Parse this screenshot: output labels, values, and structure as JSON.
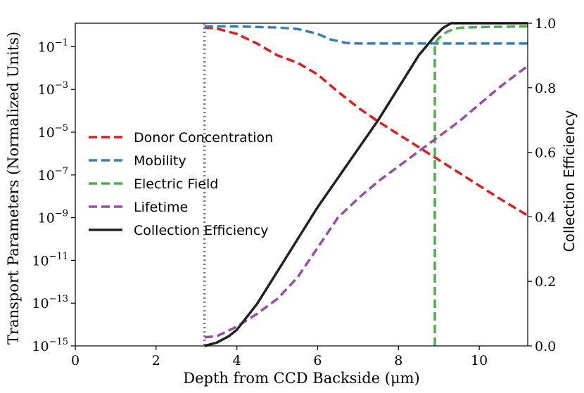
{
  "chart_data": {
    "type": "line",
    "xlabel": "Depth from CCD Backside (μm)",
    "ylabel_left": "Transport Parameters (Normalized Units)",
    "ylabel_right": "Collection Efficiency",
    "xlim": [
      0,
      11.2
    ],
    "ylim_left_log10": [
      -15,
      0.1
    ],
    "ylim_right": [
      0,
      1.0
    ],
    "x_ticks": [
      0,
      2,
      4,
      6,
      8,
      10
    ],
    "x_tick_labels": [
      "0",
      "2",
      "4",
      "6",
      "8",
      "10"
    ],
    "y_left_ticks": [
      {
        "exp": -1,
        "base": "10",
        "sup": "−1"
      },
      {
        "exp": -3,
        "base": "10",
        "sup": "−3"
      },
      {
        "exp": -5,
        "base": "10",
        "sup": "−5"
      },
      {
        "exp": -7,
        "base": "10",
        "sup": "−7"
      },
      {
        "exp": -9,
        "base": "10",
        "sup": "−9"
      },
      {
        "exp": -11,
        "base": "10",
        "sup": "−11"
      },
      {
        "exp": -13,
        "base": "10",
        "sup": "−13"
      },
      {
        "exp": -15,
        "base": "10",
        "sup": "−15"
      }
    ],
    "y_right_ticks": [
      0.0,
      0.2,
      0.4,
      0.6,
      0.8,
      1.0
    ],
    "y_right_tick_labels": [
      "0.0",
      "0.2",
      "0.4",
      "0.6",
      "0.8",
      "1.0"
    ],
    "reference_line": {
      "x": 3.2,
      "color": "#808080",
      "style": "dotted"
    },
    "legend_position": "center-left",
    "series": [
      {
        "name": "Donor Concentration",
        "axis": "left",
        "style": "dashed",
        "color": "#e41a1c",
        "x": [
          3.2,
          3.5,
          4.0,
          4.5,
          5.0,
          5.5,
          6.0,
          6.5,
          7.0,
          7.5,
          8.0,
          8.5,
          9.0,
          9.5,
          10.0,
          10.5,
          11.2
        ],
        "log10_y": [
          -0.1,
          -0.15,
          -0.4,
          -0.85,
          -1.4,
          -1.75,
          -2.3,
          -3.1,
          -3.85,
          -4.5,
          -5.1,
          -5.7,
          -6.3,
          -6.9,
          -7.5,
          -8.1,
          -8.9
        ]
      },
      {
        "name": "Mobility",
        "axis": "left",
        "style": "dashed",
        "color": "#377eb8",
        "x": [
          3.2,
          4.0,
          5.0,
          5.5,
          6.0,
          6.3,
          6.7,
          7.0,
          8.0,
          9.0,
          10.0,
          11.2
        ],
        "log10_y": [
          -0.05,
          -0.05,
          -0.1,
          -0.17,
          -0.4,
          -0.65,
          -0.82,
          -0.85,
          -0.85,
          -0.85,
          -0.85,
          -0.85
        ]
      },
      {
        "name": "Electric Field",
        "axis": "left",
        "style": "dashed",
        "color": "#4daf4a",
        "x": [
          8.9,
          8.9,
          9.0,
          9.2,
          9.4,
          9.6,
          10.0,
          11.2
        ],
        "log10_y": [
          -15,
          -0.85,
          -0.6,
          -0.3,
          -0.15,
          -0.1,
          -0.08,
          -0.05
        ]
      },
      {
        "name": "Lifetime",
        "axis": "left",
        "style": "dashed",
        "color": "#984ea3",
        "x": [
          3.2,
          3.5,
          4.0,
          4.5,
          5.0,
          5.5,
          6.0,
          6.5,
          7.0,
          7.5,
          8.0,
          8.5,
          9.0,
          9.5,
          10.0,
          10.5,
          11.2
        ],
        "log10_y": [
          -14.6,
          -14.55,
          -14.1,
          -13.5,
          -12.8,
          -11.8,
          -10.4,
          -9.0,
          -8.1,
          -7.3,
          -6.6,
          -5.9,
          -5.2,
          -4.5,
          -3.7,
          -2.9,
          -1.9
        ]
      },
      {
        "name": "Collection Efficiency",
        "axis": "right",
        "style": "solid",
        "color": "#222222",
        "x": [
          3.2,
          3.5,
          3.8,
          4.0,
          4.5,
          5.0,
          5.5,
          6.0,
          6.5,
          7.0,
          7.5,
          8.0,
          8.5,
          8.9,
          9.1,
          9.3,
          9.5,
          10.0,
          11.2
        ],
        "y": [
          0.0,
          0.01,
          0.03,
          0.05,
          0.13,
          0.23,
          0.33,
          0.43,
          0.52,
          0.61,
          0.7,
          0.8,
          0.9,
          0.96,
          0.985,
          1.0,
          1.0,
          1.0,
          1.0
        ]
      }
    ]
  }
}
